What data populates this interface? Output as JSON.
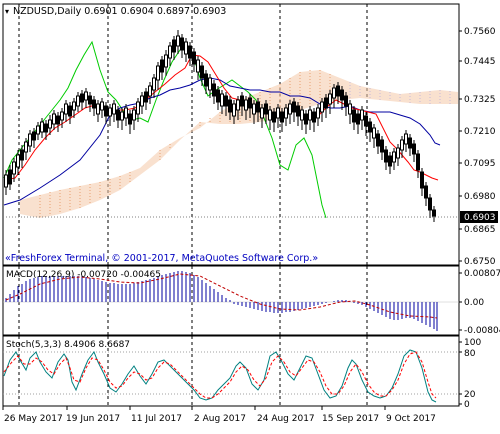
{
  "window": {
    "header": "NZDUSD,Daily  0.6901 0.6904 0.6897 0.6903",
    "copyright": "«FreshForex Terminal, © 2001-2017, MetaQuotes Software Corp.»",
    "last_price": "0.6903"
  },
  "colors": {
    "background": "#ffffff",
    "frame": "#000000",
    "candle_up": "#ffffff",
    "candle_down": "#000000",
    "tenkan": "#ff0000",
    "kijun": "#0000a0",
    "chikou": "#00cc00",
    "kumo": "#e8a070",
    "kumo_secondary": "#c8b8d8",
    "macd_hist": "#0000a0",
    "macd_signal": "#c00000",
    "stoch_main": "#008080",
    "stoch_signal": "#ff0000",
    "copyright": "#0000c0"
  },
  "main_panel": {
    "price_ticks": [
      "0.7560",
      "0.7445",
      "0.7325",
      "0.7210",
      "0.7095",
      "0.6980",
      "0.6865",
      "0.6750"
    ],
    "indicators": [
      "candlesticks",
      "ichimoku-tenkan",
      "ichimoku-kijun",
      "ichimoku-chikou",
      "ichimoku-kumo"
    ]
  },
  "macd_panel": {
    "label": "MACD(12,26,9) -0.00720 -0.00465",
    "ticks": [
      "0.00807",
      "0.00",
      "-0.00804"
    ]
  },
  "stoch_panel": {
    "label": "Stoch(5,3,3) 8.4906 8.6687",
    "ticks": [
      "100",
      "80",
      "20",
      "0"
    ]
  },
  "time_axis": [
    "26 May 2017",
    "19 Jun 2017",
    "11 Jul 2017",
    "2 Aug 2017",
    "24 Aug 2017",
    "15 Sep 2017",
    "9 Oct 2017"
  ]
}
